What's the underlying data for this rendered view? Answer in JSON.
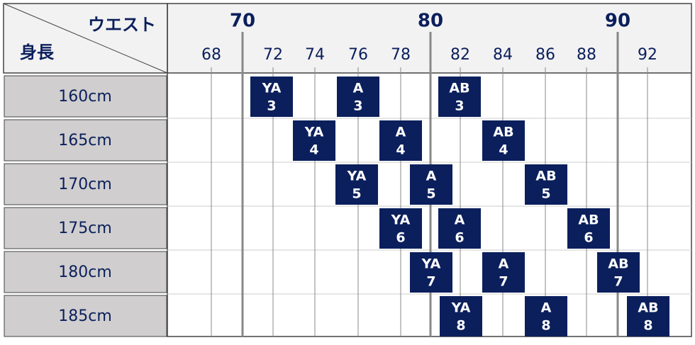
{
  "header": {
    "waist": "ウエスト",
    "height": "身長"
  },
  "major_ticks": [
    70,
    80,
    90
  ],
  "minor_ticks": [
    68,
    72,
    74,
    76,
    78,
    82,
    84,
    86,
    88,
    92
  ],
  "rows": [
    {
      "label": "160cm",
      "cells": [
        {
          "size": "YA",
          "number": 3
        },
        {
          "size": "A",
          "number": 3
        },
        {
          "size": "AB",
          "number": 3
        }
      ]
    },
    {
      "label": "165cm",
      "cells": [
        {
          "size": "YA",
          "number": 4
        },
        {
          "size": "A",
          "number": 4
        },
        {
          "size": "AB",
          "number": 4
        }
      ]
    },
    {
      "label": "170cm",
      "cells": [
        {
          "size": "YA",
          "number": 5
        },
        {
          "size": "A",
          "number": 5
        },
        {
          "size": "AB",
          "number": 5
        }
      ]
    },
    {
      "label": "175cm",
      "cells": [
        {
          "size": "YA",
          "number": 6
        },
        {
          "size": "A",
          "number": 6
        },
        {
          "size": "AB",
          "number": 6
        }
      ]
    },
    {
      "label": "180cm",
      "cells": [
        {
          "size": "YA",
          "number": 7
        },
        {
          "size": "A",
          "number": 7
        },
        {
          "size": "AB",
          "number": 7
        }
      ]
    },
    {
      "label": "185cm",
      "cells": [
        {
          "size": "YA",
          "number": 8
        },
        {
          "size": "A",
          "number": 8
        },
        {
          "size": "AB",
          "number": 8
        }
      ]
    }
  ]
}
